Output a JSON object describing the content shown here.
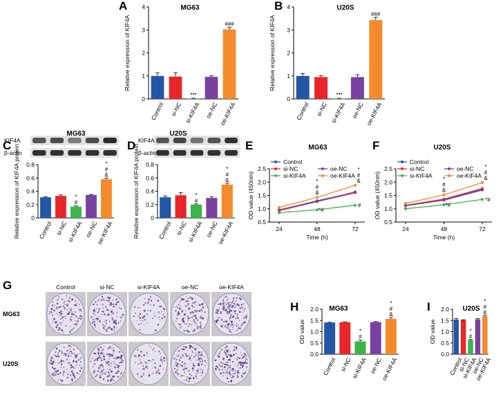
{
  "colors": {
    "control": "#2356a6",
    "si_nc": "#e8262a",
    "si_kif4a": "#3cb44a",
    "oe_nc": "#7a42a0",
    "oe_kif4a": "#f58a2c",
    "axis": "#000000",
    "band": "#2a2a2a",
    "colony": "#5a3d8a"
  },
  "panels": [
    {
      "label": "A",
      "title": "MG63",
      "type": "bar",
      "ylabel": "Relative expression of KIF4A",
      "ylim": [
        0,
        4
      ],
      "yticks": [
        0,
        1,
        2,
        3,
        4
      ],
      "categories": [
        "Control",
        "si-NC",
        "si-KIF4A",
        "oe-NC",
        "oe-KIF4A"
      ],
      "values": [
        1.0,
        0.97,
        0.02,
        0.96,
        3.02
      ],
      "errors": [
        0.14,
        0.17,
        0.01,
        0.05,
        0.1
      ],
      "annotations": [
        "",
        "",
        "***",
        "",
        "###"
      ]
    },
    {
      "label": "B",
      "title": "U20S",
      "type": "bar",
      "ylabel": "Relative expression of KIF4A",
      "ylim": [
        0,
        4
      ],
      "yticks": [
        0,
        1,
        2,
        3,
        4
      ],
      "categories": [
        "Control",
        "si-NC",
        "si-KIF4A",
        "oe-NC",
        "oe-KIF4A"
      ],
      "values": [
        1.0,
        0.95,
        0.02,
        0.95,
        3.43
      ],
      "errors": [
        0.1,
        0.06,
        0.01,
        0.1,
        0.12
      ],
      "annotations": [
        "",
        "",
        "***",
        "",
        "###"
      ]
    },
    {
      "label": "C",
      "title": "MG63",
      "type": "bar",
      "ylabel": "Relative expression of KIF4A protein",
      "ylim": [
        0,
        0.8
      ],
      "yticks": [
        0,
        0.2,
        0.4,
        0.6,
        0.8
      ],
      "categories": [
        "Control",
        "si-NC",
        "si-KIF4A",
        "oe-NC",
        "oe-KIF4A"
      ],
      "values": [
        0.31,
        0.33,
        0.17,
        0.345,
        0.58
      ],
      "errors": [
        0.01,
        0.015,
        0.01,
        0.008,
        0.015
      ],
      "annotations": [
        "",
        "",
        "*\n#",
        "",
        "*\n#\n&"
      ]
    },
    {
      "label": "D",
      "title": "U20S",
      "type": "bar",
      "ylabel": "Relative expression of KIF4A protein",
      "ylim": [
        0,
        0.8
      ],
      "yticks": [
        0,
        0.2,
        0.4,
        0.6,
        0.8
      ],
      "categories": [
        "Control",
        "si-NC",
        "si-KIF4A",
        "oe-NC",
        "oe-KIF4A"
      ],
      "values": [
        0.31,
        0.34,
        0.2,
        0.3,
        0.5
      ],
      "errors": [
        0.02,
        0.04,
        0.01,
        0.02,
        0.02
      ],
      "annotations": [
        "",
        "",
        "*\n#",
        "",
        "*\n#\n&"
      ]
    },
    {
      "label": "E",
      "title": "MG63",
      "type": "line",
      "ylabel": "OD value (450nm)",
      "xlabel": "Time (h)",
      "ylim": [
        0.5,
        2.5
      ],
      "yticks": [
        0.5,
        1.0,
        1.5,
        2.0,
        2.5
      ],
      "x": [
        24,
        48,
        72
      ],
      "series": [
        {
          "name": "Control",
          "values": [
            0.95,
            1.3,
            1.62
          ]
        },
        {
          "name": "si-NC",
          "values": [
            0.93,
            1.27,
            1.6
          ]
        },
        {
          "name": "si-KIF4A",
          "values": [
            0.85,
            0.96,
            1.13
          ]
        },
        {
          "name": "oe-NC",
          "values": [
            0.96,
            1.28,
            1.63
          ]
        },
        {
          "name": "oe-KIF4A",
          "values": [
            1.05,
            1.43,
            1.88
          ]
        }
      ],
      "annotations": [
        "*\n#\n&",
        "*#",
        "*\n#\n&",
        "#"
      ]
    },
    {
      "label": "F",
      "title": "U20S",
      "type": "line",
      "ylabel": "OD value (450nm)",
      "xlabel": "Time (h)",
      "ylim": [
        0.5,
        2.5
      ],
      "yticks": [
        0.5,
        1.0,
        1.5,
        2.0,
        2.5
      ],
      "x": [
        24,
        48,
        72
      ],
      "series": [
        {
          "name": "Control",
          "values": [
            1.12,
            1.35,
            1.72
          ]
        },
        {
          "name": "si-NC",
          "values": [
            1.13,
            1.36,
            1.76
          ]
        },
        {
          "name": "si-KIF4A",
          "values": [
            1.0,
            1.15,
            1.35
          ]
        },
        {
          "name": "oe-NC",
          "values": [
            1.11,
            1.32,
            1.7
          ]
        },
        {
          "name": "oe-KIF4A",
          "values": [
            1.2,
            1.52,
            1.98
          ]
        }
      ],
      "annotations": [
        "*\n#\n&",
        "*#",
        "*\n#\n&",
        "*#"
      ]
    },
    {
      "label": "H",
      "title": "MG63",
      "type": "bar",
      "ylabel": "OD value",
      "ylim": [
        0,
        2.0
      ],
      "yticks": [
        0.0,
        0.5,
        1.0,
        1.5,
        2.0
      ],
      "categories": [
        "Control",
        "si-NC",
        "si-KIF4A",
        "oe-NC",
        "oe-KIF4A"
      ],
      "values": [
        1.41,
        1.42,
        0.57,
        1.43,
        1.57
      ],
      "errors": [
        0.01,
        0.02,
        0.06,
        0.02,
        0.06
      ],
      "annotations": [
        "",
        "",
        "*\n#",
        "",
        "*\n#\n&"
      ]
    },
    {
      "label": "I",
      "title": "U20S",
      "type": "bar",
      "ylabel": "OD value",
      "ylim": [
        0,
        2.0
      ],
      "yticks": [
        0.0,
        0.5,
        1.0,
        1.5,
        2.0
      ],
      "categories": [
        "Control",
        "si-NC",
        "si-KIF4A",
        "oe-NC",
        "oe-KIF4A"
      ],
      "values": [
        1.54,
        1.52,
        0.63,
        1.55,
        1.67
      ],
      "errors": [
        0.05,
        0.01,
        0.02,
        0.03,
        0.04
      ],
      "annotations": [
        "",
        "",
        "*\n#",
        "",
        "*\n#\n&"
      ]
    }
  ],
  "blots": [
    {
      "panel": "C",
      "rows": [
        "KIF4A",
        "β-actin"
      ],
      "kif4a_intensity": [
        0.7,
        0.75,
        0.4,
        0.75,
        1.0
      ]
    },
    {
      "panel": "D",
      "rows": [
        "KIF4A",
        "β-actin"
      ],
      "kif4a_intensity": [
        0.7,
        0.8,
        0.45,
        0.7,
        0.95
      ]
    }
  ],
  "colony": {
    "label": "G",
    "columns": [
      "Control",
      "si-NC",
      "si-KIF4A",
      "oe-NC",
      "oe-KIF4A"
    ],
    "rows": [
      "MG63",
      "U20S"
    ],
    "density": [
      [
        0.7,
        0.75,
        0.25,
        0.75,
        0.95
      ],
      [
        0.75,
        0.8,
        0.3,
        0.8,
        0.95
      ]
    ]
  }
}
